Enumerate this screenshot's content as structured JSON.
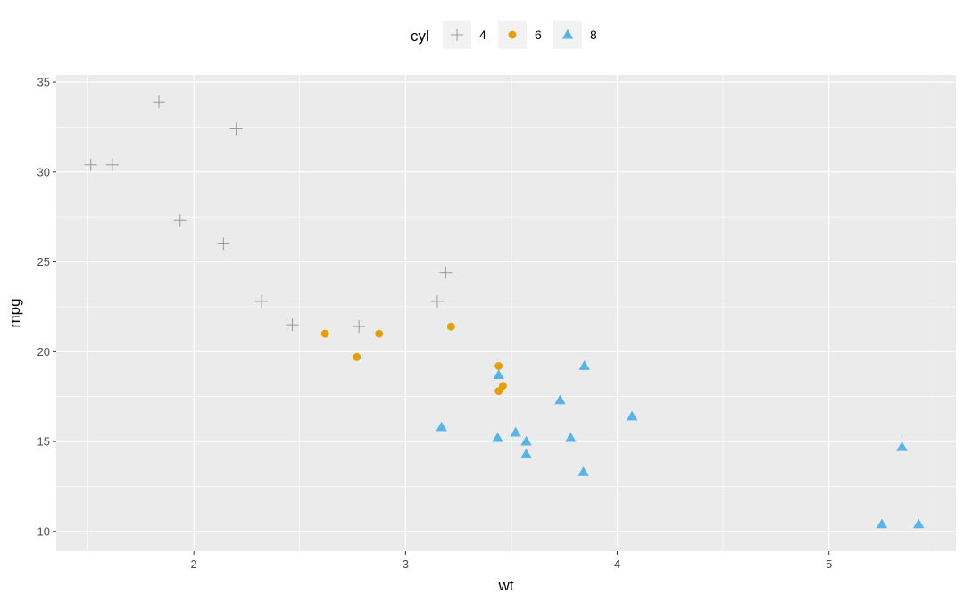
{
  "chart_data": {
    "type": "scatter",
    "xlabel": "wt",
    "ylabel": "mpg",
    "xlim": [
      1.35,
      5.6
    ],
    "ylim": [
      8.9,
      35.4
    ],
    "x_ticks": [
      2,
      3,
      4,
      5
    ],
    "y_ticks": [
      10,
      15,
      20,
      25,
      30,
      35
    ],
    "grid": true,
    "background": "#ebebeb",
    "legend": {
      "title": "cyl",
      "position": "top",
      "entries": [
        "4",
        "6",
        "8"
      ]
    },
    "series": [
      {
        "name": "4",
        "shape": "plus",
        "color": "#999999",
        "points": [
          [
            2.32,
            22.8
          ],
          [
            3.19,
            24.4
          ],
          [
            3.15,
            22.8
          ],
          [
            2.2,
            32.4
          ],
          [
            1.615,
            30.4
          ],
          [
            1.835,
            33.9
          ],
          [
            2.465,
            21.5
          ],
          [
            1.935,
            27.3
          ],
          [
            2.14,
            26.0
          ],
          [
            1.513,
            30.4
          ],
          [
            2.78,
            21.4
          ]
        ]
      },
      {
        "name": "6",
        "shape": "circle",
        "color": "#E69F00",
        "points": [
          [
            2.62,
            21.0
          ],
          [
            2.875,
            21.0
          ],
          [
            3.215,
            21.4
          ],
          [
            3.46,
            18.1
          ],
          [
            3.44,
            19.2
          ],
          [
            3.44,
            17.8
          ],
          [
            2.77,
            19.7
          ]
        ]
      },
      {
        "name": "8",
        "shape": "triangle",
        "color": "#56B4E9",
        "points": [
          [
            3.44,
            18.7
          ],
          [
            3.57,
            14.3
          ],
          [
            4.07,
            16.4
          ],
          [
            3.73,
            17.3
          ],
          [
            3.78,
            15.2
          ],
          [
            5.25,
            10.4
          ],
          [
            5.424,
            10.4
          ],
          [
            5.345,
            14.7
          ],
          [
            3.52,
            15.5
          ],
          [
            3.435,
            15.2
          ],
          [
            3.84,
            13.3
          ],
          [
            3.845,
            19.2
          ],
          [
            3.17,
            15.8
          ],
          [
            3.57,
            15.0
          ]
        ]
      }
    ]
  }
}
